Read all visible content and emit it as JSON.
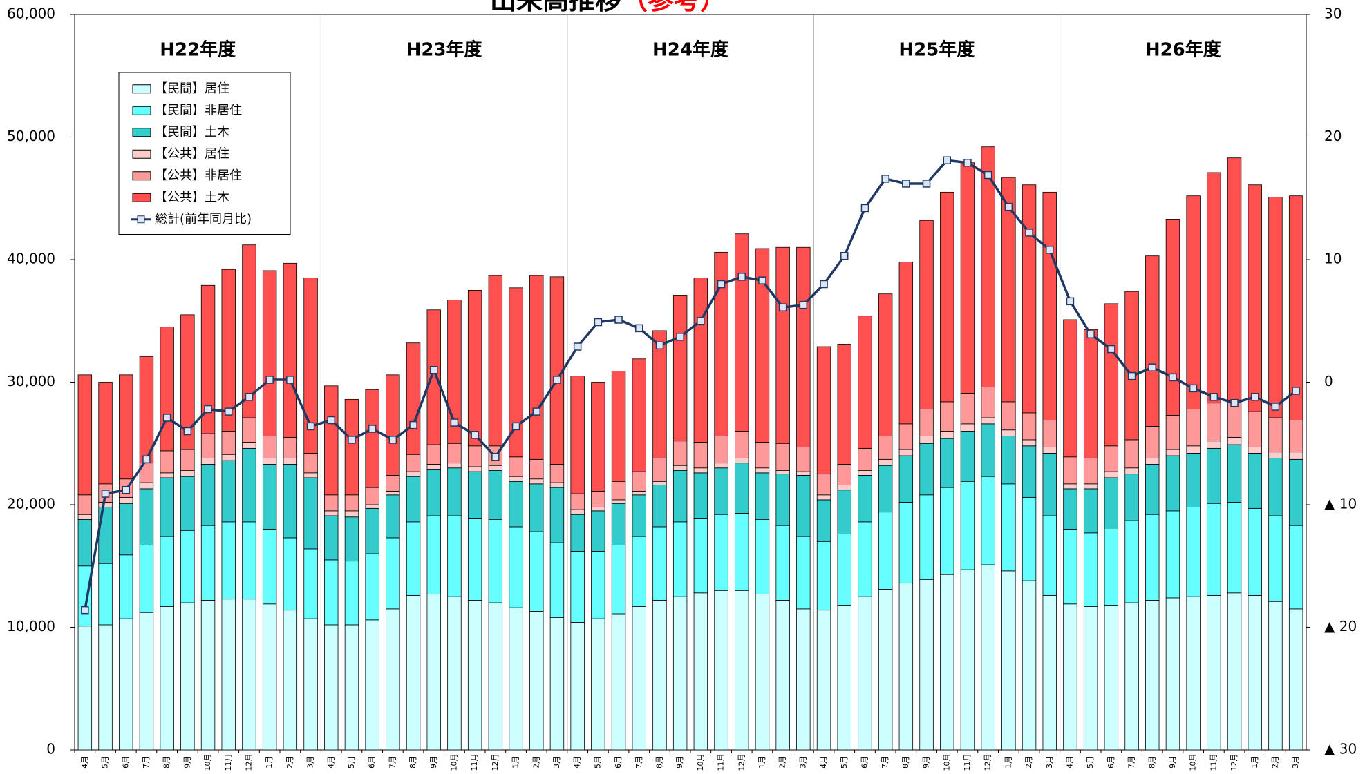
{
  "chart_data": {
    "type": "bar",
    "stacked": true,
    "title": "出来高推移",
    "title_note": "（参考）",
    "annotations": [
      "H22年度",
      "H23年度",
      "H24年度",
      "H25年度",
      "H26年度"
    ],
    "categories": [
      "4月",
      "5月",
      "6月",
      "7月",
      "8月",
      "9月",
      "10月",
      "11月",
      "12月",
      "1月",
      "2月",
      "3月",
      "4月",
      "5月",
      "6月",
      "7月",
      "8月",
      "9月",
      "10月",
      "11月",
      "12月",
      "1月",
      "2月",
      "3月",
      "4月",
      "5月",
      "6月",
      "7月",
      "8月",
      "9月",
      "10月",
      "11月",
      "12月",
      "1月",
      "2月",
      "3月",
      "4月",
      "5月",
      "6月",
      "7月",
      "8月",
      "9月",
      "10月",
      "11月",
      "12月",
      "1月",
      "2月",
      "3月",
      "4月",
      "5月",
      "6月",
      "7月",
      "8月",
      "9月",
      "10月",
      "11月",
      "12月",
      "1月",
      "2月",
      "3月"
    ],
    "ylim": [
      0,
      60000
    ],
    "yticks": [
      {
        "value": 0,
        "label": "0"
      },
      {
        "value": 10000,
        "label": "10,000"
      },
      {
        "value": 20000,
        "label": "20,000"
      },
      {
        "value": 30000,
        "label": "30,000"
      },
      {
        "value": 40000,
        "label": "40,000"
      },
      {
        "value": 50000,
        "label": "50,000"
      },
      {
        "value": 60000,
        "label": "60,000"
      }
    ],
    "y2lim": [
      -30,
      30
    ],
    "y2ticks": [
      {
        "value": -30,
        "label": "▲ 30"
      },
      {
        "value": -20,
        "label": "▲ 20"
      },
      {
        "value": -10,
        "label": "▲ 10"
      },
      0,
      10,
      20,
      30
    ],
    "legend": "upper left",
    "series": [
      {
        "name": "【民間】居住",
        "color": "#ccffff",
        "values": [
          10100,
          10200,
          10700,
          11200,
          11700,
          12000,
          12200,
          12300,
          12300,
          11900,
          11400,
          10700,
          10200,
          10200,
          10600,
          11500,
          12600,
          12700,
          12500,
          12200,
          12000,
          11600,
          11300,
          10800,
          10400,
          10700,
          11100,
          11700,
          12200,
          12500,
          12800,
          13000,
          13000,
          12700,
          12200,
          11500,
          11400,
          11800,
          12500,
          13100,
          13600,
          13900,
          14300,
          14700,
          15100,
          14600,
          13800,
          12600,
          11900,
          11700,
          11800,
          12000,
          12200,
          12400,
          12500,
          12600,
          12800,
          12600,
          12100,
          11500
        ]
      },
      {
        "name": "【民間】非居住",
        "color": "#66ffff",
        "values": [
          4900,
          5000,
          5200,
          5500,
          5700,
          5900,
          6100,
          6300,
          6300,
          6100,
          5900,
          5700,
          5300,
          5200,
          5400,
          5800,
          6000,
          6400,
          6600,
          6700,
          6800,
          6600,
          6500,
          6100,
          5800,
          5500,
          5600,
          5700,
          6000,
          6100,
          6100,
          6200,
          6300,
          6100,
          6100,
          5900,
          5600,
          5800,
          6100,
          6300,
          6600,
          6900,
          7100,
          7200,
          7200,
          7100,
          6800,
          6500,
          6100,
          6000,
          6300,
          6700,
          7000,
          7100,
          7300,
          7500,
          7400,
          7100,
          7000,
          6800
        ]
      },
      {
        "name": "【民間】土木",
        "color": "#33cccc",
        "values": [
          3800,
          4600,
          4200,
          4600,
          4800,
          4400,
          5000,
          5000,
          6000,
          5300,
          6000,
          5800,
          3600,
          3600,
          3700,
          3500,
          3700,
          3800,
          3900,
          3800,
          4000,
          3700,
          3900,
          4500,
          3000,
          3300,
          3400,
          3400,
          3400,
          4200,
          3700,
          3800,
          4100,
          3800,
          4200,
          5000,
          3400,
          3600,
          3800,
          3800,
          3800,
          4200,
          4000,
          4100,
          4300,
          3900,
          4200,
          5100,
          3300,
          3600,
          4100,
          3800,
          4100,
          4500,
          4400,
          4500,
          4700,
          4500,
          4700,
          5400
        ]
      },
      {
        "name": "【公共】居住",
        "color": "#ffcccc",
        "values": [
          400,
          400,
          500,
          500,
          400,
          500,
          500,
          500,
          500,
          500,
          500,
          400,
          400,
          500,
          300,
          300,
          400,
          400,
          400,
          400,
          400,
          400,
          400,
          400,
          400,
          300,
          300,
          300,
          300,
          400,
          400,
          400,
          400,
          400,
          300,
          300,
          400,
          400,
          400,
          500,
          500,
          600,
          600,
          600,
          500,
          500,
          500,
          500,
          400,
          400,
          500,
          500,
          500,
          500,
          600,
          600,
          600,
          500,
          500,
          600
        ]
      },
      {
        "name": "【公共】非居住",
        "color": "#ff9999",
        "values": [
          1600,
          1500,
          1500,
          1600,
          1800,
          1700,
          2000,
          1900,
          2000,
          1800,
          1700,
          1600,
          1300,
          1300,
          1400,
          1300,
          1400,
          1600,
          1600,
          1700,
          1600,
          1600,
          1600,
          1500,
          1300,
          1300,
          1500,
          1600,
          1900,
          2000,
          2100,
          2200,
          2200,
          2100,
          2200,
          2000,
          1700,
          1700,
          1800,
          1900,
          2100,
          2200,
          2400,
          2500,
          2500,
          2300,
          2200,
          2200,
          2200,
          2100,
          2100,
          2300,
          2600,
          2800,
          3000,
          3100,
          3000,
          2900,
          2800,
          2600
        ]
      },
      {
        "name": "【公共】土木",
        "color": "#ff5050",
        "values": [
          9800,
          8300,
          8500,
          8700,
          10100,
          11000,
          12100,
          13200,
          14100,
          13500,
          14200,
          14300,
          8900,
          7800,
          8000,
          8200,
          9100,
          11000,
          11700,
          12700,
          13900,
          13800,
          15000,
          15300,
          9600,
          8900,
          9000,
          9200,
          10400,
          11900,
          13400,
          15000,
          16100,
          15800,
          16000,
          16300,
          10400,
          9800,
          10800,
          11600,
          13200,
          15400,
          17100,
          18800,
          19600,
          18300,
          18600,
          18600,
          11200,
          10500,
          11600,
          12100,
          13900,
          16000,
          17400,
          18800,
          19800,
          18500,
          18000,
          18300
        ]
      },
      {
        "name": "総計(前年同月比)",
        "type": "line",
        "axis": "y2",
        "color": "#1f3864",
        "values": [
          -18.6,
          -9.1,
          -8.8,
          -6.3,
          -2.9,
          -4.0,
          -2.2,
          -2.4,
          -1.2,
          0.2,
          0.2,
          -3.6,
          -3.1,
          -4.7,
          -3.8,
          -4.7,
          -3.5,
          1.0,
          -3.3,
          -4.3,
          -6.1,
          -3.6,
          -2.4,
          0.2,
          2.9,
          4.9,
          5.1,
          4.4,
          3.0,
          3.7,
          5.0,
          8.0,
          8.6,
          8.3,
          6.1,
          6.3,
          8.0,
          10.3,
          14.2,
          16.6,
          16.2,
          16.2,
          18.1,
          17.9,
          16.9,
          14.3,
          12.2,
          10.8,
          6.6,
          3.9,
          2.7,
          0.5,
          1.2,
          0.4,
          -0.5,
          -1.2,
          -1.7,
          -1.2,
          -2.0,
          -0.7
        ]
      }
    ]
  }
}
